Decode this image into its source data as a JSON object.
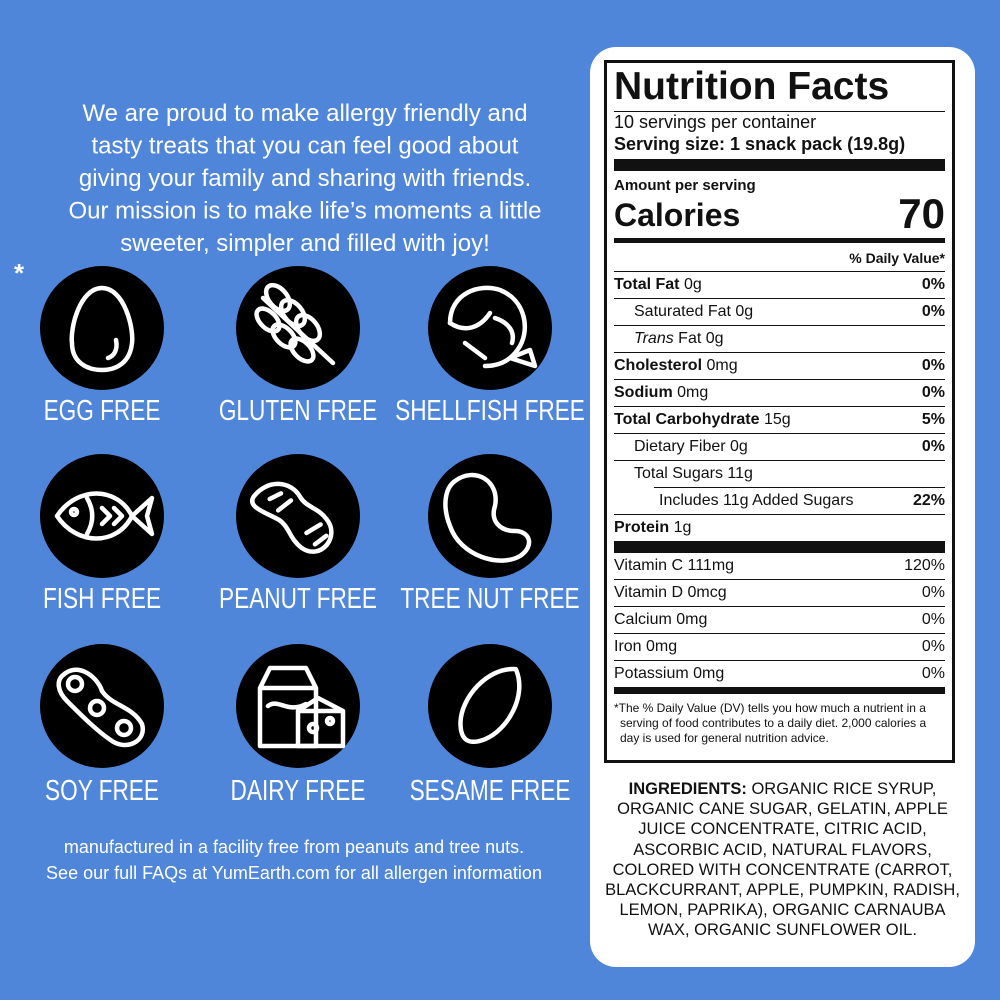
{
  "intro": {
    "lines": [
      "We are proud to make allergy friendly and",
      "tasty treats that you can feel  good about",
      "giving your family and sharing with friends.",
      "Our mission is to make life’s moments a little",
      "sweeter, simpler and filled with joy!"
    ]
  },
  "asterisk": "*",
  "allergens": [
    "EGG FREE",
    "GLUTEN FREE",
    "SHELLFISH FREE",
    "FISH FREE",
    "PEANUT FREE",
    "TREE NUT FREE",
    "SOY FREE",
    "DAIRY FREE",
    "SESAME FREE"
  ],
  "footer": {
    "lines": [
      "manufactured in a facility free from peanuts and tree nuts.",
      "See our full FAQs at YumEarth.com for all allergen information"
    ]
  },
  "nutrition": {
    "title": "Nutrition Facts",
    "servings": "10 servings per container",
    "serving_size": "Serving size: 1 snack pack (19.8g)",
    "amount_per_serving": "Amount per serving",
    "calories_label": "Calories",
    "calories": "70",
    "dv_header": "% Daily Value*",
    "nutrients": [
      {
        "name": "Total Fat",
        "amount": "0g",
        "dv": "0%",
        "bold": true,
        "indent": 0
      },
      {
        "name": "Saturated Fat 0g",
        "dv": "0%",
        "indent": 1
      },
      {
        "italic": "Trans",
        "name": "Fat 0g",
        "indent": 1
      },
      {
        "name": "Cholesterol",
        "amount": "0mg",
        "dv": "0%",
        "bold": true,
        "indent": 0
      },
      {
        "name": "Sodium",
        "amount": "0mg",
        "dv": "0%",
        "bold": true,
        "indent": 0
      },
      {
        "name": "Total Carbohydrate",
        "amount": "15g",
        "dv": "5%",
        "bold": true,
        "indent": 0
      },
      {
        "name": "Dietary Fiber 0g",
        "dv": "0%",
        "indent": 1
      },
      {
        "name": "Total Sugars 11g",
        "indent": 1
      },
      {
        "name": "Includes 11g Added Sugars",
        "dv": "22%",
        "indent": 2
      },
      {
        "name": "Protein",
        "amount": "1g",
        "bold": true,
        "indent": 0
      }
    ],
    "vitamins": [
      {
        "name": "Vitamin C 111mg",
        "dv": "120%"
      },
      {
        "name": "Vitamin D 0mcg",
        "dv": "0%"
      },
      {
        "name": "Calcium 0mg",
        "dv": "0%"
      },
      {
        "name": "Iron 0mg",
        "dv": "0%"
      },
      {
        "name": "Potassium 0mg",
        "dv": "0%"
      }
    ],
    "footnote": "*The % Daily Value (DV) tells you how much a nutrient in a serving of food contributes to a daily diet. 2,000 calories a day is used for general nutrition advice."
  },
  "ingredients": {
    "label": "INGREDIENTS:",
    "text": "ORGANIC RICE SYRUP, ORGANIC CANE SUGAR, GELATIN, APPLE JUICE CONCENTRATE, CITRIC ACID, ASCORBIC ACID, NATURAL FLAVORS, COLORED WITH CONCENTRATE (CARROT, BLACKCURRANT, APPLE, PUMPKIN, RADISH, LEMON, PAPRIKA), ORGANIC CARNAUBA WAX, ORGANIC SUNFLOWER OIL."
  }
}
